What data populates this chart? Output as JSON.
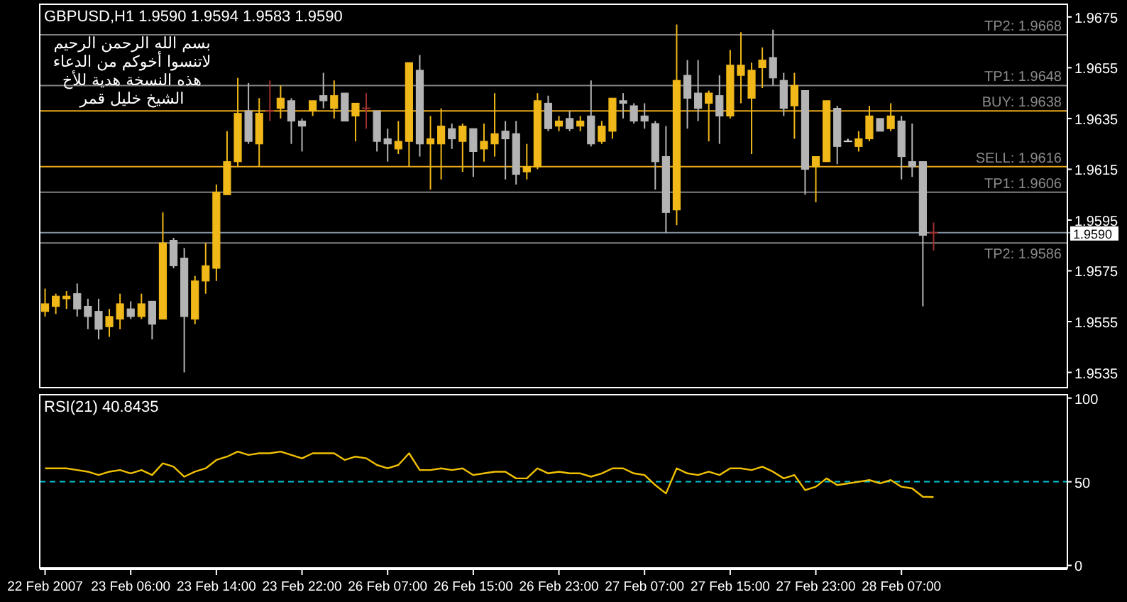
{
  "chart_data": [
    {
      "type": "candlestick",
      "title": "GBPUSD,H1  1.9590 1.9594 1.9583 1.9590",
      "annotations": [
        "بسم الله الرحمن الرحيم",
        "لاتنسوا أخوكم من الدعاء",
        "هذه النسخة هدية للأخ",
        "الشيخ خليل قمر"
      ],
      "categories": [
        null,
        null,
        null,
        null,
        null,
        null,
        null,
        null,
        null,
        null,
        null,
        null,
        null,
        null,
        null,
        null,
        null,
        null,
        null,
        null,
        null,
        null,
        null,
        null,
        null,
        null,
        null,
        null,
        null,
        null,
        null,
        null,
        null,
        null,
        null,
        null,
        null,
        null,
        null,
        null,
        null,
        null,
        null,
        null,
        null,
        null,
        null,
        null,
        null,
        null,
        null,
        null,
        null,
        null,
        null,
        null,
        null,
        null,
        null,
        null,
        null,
        null,
        null,
        null,
        null,
        null,
        null,
        null,
        null,
        null,
        null,
        null,
        null,
        null,
        null,
        null,
        null,
        null,
        null,
        null,
        null,
        null,
        null,
        null,
        null,
        null,
        null,
        null,
        null,
        null,
        null,
        null,
        null,
        null,
        null,
        null
      ],
      "ohlc": [
        [
          1.9559,
          1.9568,
          1.9557,
          1.9562
        ],
        [
          1.9561,
          1.9566,
          1.9558,
          1.9565
        ],
        [
          1.9564,
          1.9567,
          1.956,
          1.9565
        ],
        [
          1.9566,
          1.957,
          1.9557,
          1.956
        ],
        [
          1.9561,
          1.9564,
          1.9552,
          1.9557
        ],
        [
          1.9559,
          1.9564,
          1.9548,
          1.9552
        ],
        [
          1.9553,
          1.956,
          1.9549,
          1.9557
        ],
        [
          1.9556,
          1.9566,
          1.9552,
          1.9562
        ],
        [
          1.956,
          1.9563,
          1.9556,
          1.9557
        ],
        [
          1.9557,
          1.9566,
          1.9556,
          1.9562
        ],
        [
          1.9563,
          1.9563,
          1.9548,
          1.9554
        ],
        [
          1.9556,
          1.9598,
          1.9556,
          1.9586
        ],
        [
          1.9587,
          1.9588,
          1.9576,
          1.9577
        ],
        [
          1.958,
          1.9584,
          1.9535,
          1.9557
        ],
        [
          1.9556,
          1.9573,
          1.9554,
          1.9571
        ],
        [
          1.9571,
          1.9586,
          1.9566,
          1.9577
        ],
        [
          1.9576,
          1.9609,
          1.9571,
          1.9606
        ],
        [
          1.9605,
          1.963,
          1.9605,
          1.9618
        ],
        [
          1.9618,
          1.9651,
          1.9616,
          1.9637
        ],
        [
          1.9638,
          1.9649,
          1.9625,
          1.9626
        ],
        [
          1.9625,
          1.9643,
          1.9616,
          1.9637
        ],
        [
          1.9638,
          1.965,
          1.9634,
          1.9638
        ],
        [
          1.9639,
          1.9648,
          1.9635,
          1.9643
        ],
        [
          1.9642,
          1.9643,
          1.9625,
          1.9634
        ],
        [
          1.9634,
          1.9635,
          1.9622,
          1.9632
        ],
        [
          1.9638,
          1.9642,
          1.9636,
          1.9642
        ],
        [
          1.9644,
          1.9653,
          1.9639,
          1.9642
        ],
        [
          1.9639,
          1.965,
          1.9635,
          1.9644
        ],
        [
          1.9645,
          1.9645,
          1.9634,
          1.9634
        ],
        [
          1.9636,
          1.9641,
          1.9626,
          1.9641
        ],
        [
          1.9639,
          1.9645,
          1.9631,
          1.9639
        ],
        [
          1.9638,
          1.9638,
          1.9622,
          1.9626
        ],
        [
          1.9627,
          1.9631,
          1.9618,
          1.9625
        ],
        [
          1.9623,
          1.9634,
          1.9621,
          1.9626
        ],
        [
          1.9626,
          1.9657,
          1.9616,
          1.9657
        ],
        [
          1.9654,
          1.966,
          1.962,
          1.9625
        ],
        [
          1.9625,
          1.9636,
          1.9607,
          1.9627
        ],
        [
          1.9625,
          1.9639,
          1.9611,
          1.9632
        ],
        [
          1.9631,
          1.9633,
          1.9623,
          1.9627
        ],
        [
          1.9626,
          1.9633,
          1.9614,
          1.9632
        ],
        [
          1.9631,
          1.9631,
          1.9612,
          1.9622
        ],
        [
          1.9623,
          1.9633,
          1.9618,
          1.9626
        ],
        [
          1.9625,
          1.9645,
          1.962,
          1.9629
        ],
        [
          1.963,
          1.9634,
          1.9611,
          1.9627
        ],
        [
          1.9629,
          1.9634,
          1.9609,
          1.9613
        ],
        [
          1.9614,
          1.9625,
          1.9611,
          1.9616
        ],
        [
          1.9616,
          1.9645,
          1.9615,
          1.9642
        ],
        [
          1.9641,
          1.9644,
          1.963,
          1.9631
        ],
        [
          1.9632,
          1.9636,
          1.963,
          1.9634
        ],
        [
          1.9635,
          1.9638,
          1.963,
          1.9631
        ],
        [
          1.9632,
          1.9636,
          1.963,
          1.9634
        ],
        [
          1.9636,
          1.965,
          1.9624,
          1.9625
        ],
        [
          1.9626,
          1.9634,
          1.9625,
          1.9632
        ],
        [
          1.963,
          1.9643,
          1.9627,
          1.9643
        ],
        [
          1.9642,
          1.9645,
          1.9635,
          1.9641
        ],
        [
          1.964,
          1.9641,
          1.9633,
          1.9634
        ],
        [
          1.9636,
          1.9641,
          1.9631,
          1.9634
        ],
        [
          1.9633,
          1.9634,
          1.9607,
          1.9618
        ],
        [
          1.962,
          1.9632,
          1.959,
          1.9598
        ],
        [
          1.9599,
          1.9672,
          1.9593,
          1.965
        ],
        [
          1.9652,
          1.9658,
          1.9631,
          1.9643
        ],
        [
          1.9645,
          1.9658,
          1.9634,
          1.9639
        ],
        [
          1.9641,
          1.9646,
          1.9626,
          1.9645
        ],
        [
          1.9644,
          1.9652,
          1.9625,
          1.9636
        ],
        [
          1.9636,
          1.9662,
          1.9635,
          1.9656
        ],
        [
          1.9652,
          1.9669,
          1.9641,
          1.9656
        ],
        [
          1.9643,
          1.9657,
          1.9621,
          1.9654
        ],
        [
          1.9655,
          1.9663,
          1.9647,
          1.9658
        ],
        [
          1.9659,
          1.967,
          1.9648,
          1.9651
        ],
        [
          1.965,
          1.9653,
          1.9636,
          1.9639
        ],
        [
          1.964,
          1.9653,
          1.9627,
          1.9648
        ],
        [
          1.9646,
          1.9646,
          1.9605,
          1.9615
        ],
        [
          1.9616,
          1.962,
          1.9602,
          1.962
        ],
        [
          1.9618,
          1.9642,
          1.9618,
          1.9642
        ],
        [
          1.9639,
          1.964,
          1.9617,
          1.9624
        ],
        [
          1.9626,
          1.9627,
          1.9626,
          1.9626
        ],
        [
          1.9624,
          1.963,
          1.9622,
          1.9627
        ],
        [
          1.9627,
          1.964,
          1.9626,
          1.9636
        ],
        [
          1.9635,
          1.9635,
          1.963,
          1.963
        ],
        [
          1.9631,
          1.9641,
          1.963,
          1.9636
        ],
        [
          1.9634,
          1.9636,
          1.9611,
          1.962
        ],
        [
          1.9618,
          1.9633,
          1.9612,
          1.9616
        ],
        [
          1.9618,
          1.9618,
          1.9561,
          1.9589
        ],
        [
          1.959,
          1.9594,
          1.9583,
          1.959
        ],
        null,
        null,
        null,
        null,
        null,
        null,
        null,
        null,
        null,
        null,
        null,
        null
      ],
      "colors": [
        "#f0b818",
        "#f0b818",
        "#f0b818",
        "#b4b4b4",
        "#b4b4b4",
        "#b4b4b4",
        "#f0b818",
        "#f0b818",
        "#b4b4b4",
        "#f0b818",
        "#b4b4b4",
        "#f0b818",
        "#b4b4b4",
        "#b4b4b4",
        "#f0b818",
        "#f0b818",
        "#f0b818",
        "#f0b818",
        "#f0b818",
        "#b4b4b4",
        "#f0b818",
        "#a03030",
        "#f0b818",
        "#b4b4b4",
        "#b4b4b4",
        "#f0b818",
        "#b4b4b4",
        "#f0b818",
        "#b4b4b4",
        "#f0b818",
        "#a03030",
        "#b4b4b4",
        "#b4b4b4",
        "#f0b818",
        "#f0b818",
        "#b4b4b4",
        "#f0b818",
        "#f0b818",
        "#b4b4b4",
        "#f0b818",
        "#b4b4b4",
        "#f0b818",
        "#f0b818",
        "#b4b4b4",
        "#b4b4b4",
        "#f0b818",
        "#f0b818",
        "#b4b4b4",
        "#f0b818",
        "#b4b4b4",
        "#f0b818",
        "#b4b4b4",
        "#f0b818",
        "#f0b818",
        "#b4b4b4",
        "#b4b4b4",
        "#b4b4b4",
        "#b4b4b4",
        "#b4b4b4",
        "#f0b818",
        "#b4b4b4",
        "#b4b4b4",
        "#f0b818",
        "#b4b4b4",
        "#f0b818",
        "#f0b818",
        "#f0b818",
        "#f0b818",
        "#b4b4b4",
        "#b4b4b4",
        "#f0b818",
        "#b4b4b4",
        "#f0b818",
        "#f0b818",
        "#b4b4b4",
        "#d8d8d8",
        "#f0b818",
        "#f0b818",
        "#b4b4b4",
        "#f0b818",
        "#b4b4b4",
        "#b4b4b4",
        "#b4b4b4",
        "#a03030",
        null,
        null,
        null,
        null,
        null,
        null,
        null,
        null,
        null,
        null,
        null,
        null
      ],
      "ylim": [
        1.9529,
        1.968
      ],
      "yticks": [
        1.9535,
        1.9555,
        1.9575,
        1.9595,
        1.9615,
        1.9635,
        1.9655,
        1.9675
      ],
      "ref_lines": [
        {
          "axis": "y",
          "value": 1.959,
          "label": "1.9590",
          "color": "#8090a0"
        },
        {
          "axis": "y",
          "value": 1.9668,
          "label": "TP2: 1.9668",
          "color": "#808080"
        },
        {
          "axis": "y",
          "value": 1.9648,
          "label": "TP1: 1.9648",
          "color": "#808080"
        },
        {
          "axis": "y",
          "value": 1.9638,
          "label": "BUY: 1.9638",
          "color": "#e8a818"
        },
        {
          "axis": "y",
          "value": 1.9616,
          "label": "SELL: 1.9616",
          "color": "#e8a818"
        },
        {
          "axis": "y",
          "value": 1.9606,
          "label": "TP1: 1.9606",
          "color": "#808080"
        },
        {
          "axis": "y",
          "value": 1.9586,
          "label": "TP2: 1.9586",
          "color": "#808080"
        }
      ],
      "tick_labels": "y"
    },
    {
      "type": "line",
      "title": "RSI(21) 40.8435",
      "color": "#f0c000",
      "categories": [
        "22 Feb 2007",
        null,
        null,
        null,
        null,
        null,
        null,
        null,
        "23 Feb 06:00",
        null,
        null,
        null,
        null,
        null,
        null,
        null,
        "23 Feb 14:00",
        null,
        null,
        null,
        null,
        null,
        null,
        null,
        "23 Feb 22:00",
        null,
        null,
        null,
        null,
        null,
        null,
        null,
        "26 Feb 07:00",
        null,
        null,
        null,
        null,
        null,
        null,
        null,
        "26 Feb 15:00",
        null,
        null,
        null,
        null,
        null,
        null,
        null,
        "26 Feb 23:00",
        null,
        null,
        null,
        null,
        null,
        null,
        null,
        "27 Feb 07:00",
        null,
        null,
        null,
        null,
        null,
        null,
        null,
        "27 Feb 15:00",
        null,
        null,
        null,
        null,
        null,
        null,
        null,
        "27 Feb 23:00",
        null,
        null,
        null,
        null,
        null,
        null,
        null,
        "28 Feb 07:00",
        null,
        null,
        null,
        null,
        null,
        null,
        null,
        null,
        null,
        null,
        null,
        null,
        null,
        null,
        null
      ],
      "values": [
        58,
        58,
        58,
        57,
        56,
        54,
        56,
        57,
        55,
        57,
        54,
        61,
        59,
        53,
        56,
        58,
        63,
        65,
        68,
        66,
        67,
        67,
        68,
        66,
        64,
        67,
        67,
        67,
        63,
        65,
        64,
        60,
        58,
        60,
        67,
        57,
        57,
        58,
        57,
        58,
        54,
        55,
        56,
        56,
        52,
        52,
        58,
        55,
        56,
        55,
        55,
        53,
        55,
        58,
        58,
        55,
        54,
        48,
        43,
        58,
        55,
        54,
        56,
        54,
        58,
        58,
        57,
        59,
        56,
        52,
        54,
        45,
        47,
        52,
        48,
        49,
        50,
        51,
        49,
        51,
        47,
        46,
        41,
        40.8435,
        null,
        null,
        null,
        null,
        null,
        null,
        null,
        null,
        null,
        null,
        null,
        null
      ],
      "ylim": [
        -1.5,
        102
      ],
      "yticks": [
        0,
        50,
        100
      ],
      "ref_lines": [
        {
          "axis": "y",
          "value": 50,
          "color": "#00c8d8",
          "line_style": "dashed"
        }
      ]
    }
  ]
}
